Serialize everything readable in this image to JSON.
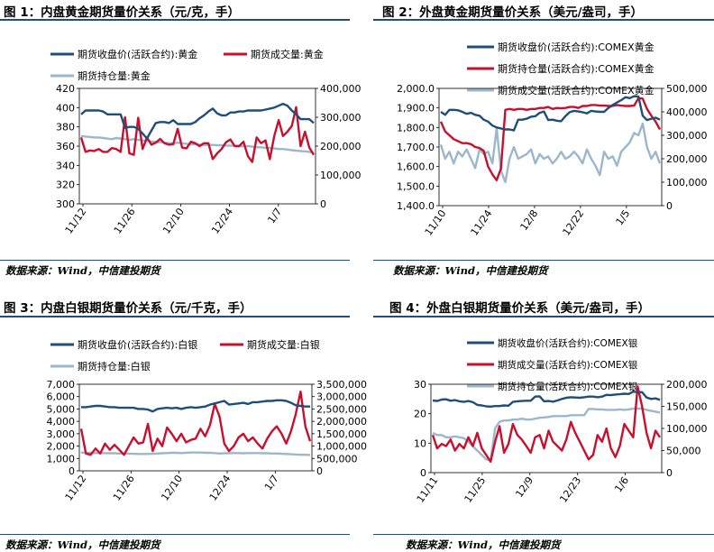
{
  "footer_source": "数据来源：Wind，中信建投期货",
  "chart_data": [
    {
      "type": "line",
      "title": "图 1：内盘黄金期货量价关系（元/克，手）",
      "x_ticks": [
        "11/12",
        "11/26",
        "12/10",
        "12/24",
        "1/7"
      ],
      "left_axis": {
        "ticks": [
          "300",
          "320",
          "340",
          "360",
          "380",
          "400",
          "420"
        ],
        "ylim": [
          300,
          420
        ]
      },
      "right_axis": {
        "ticks": [
          "0",
          "100,000",
          "200,000",
          "300,000",
          "400,000"
        ],
        "ylim": [
          0,
          400000
        ]
      },
      "series": [
        {
          "name": "期货收盘价(活跃合约):黄金",
          "axis": "left",
          "color": "#1f4e79",
          "values": [
            393,
            397,
            397,
            397,
            397,
            396,
            393,
            393,
            393,
            393,
            379,
            380,
            380,
            378,
            373,
            368,
            376,
            384,
            385,
            385,
            384,
            387,
            383,
            383,
            383,
            383,
            385,
            389,
            392,
            396,
            399,
            394,
            392,
            392,
            395,
            395,
            396,
            396,
            397,
            397,
            397,
            397,
            398,
            399,
            400,
            402,
            404,
            402,
            397,
            393,
            388,
            388,
            388,
            384
          ]
        },
        {
          "name": "期货成交量:黄金",
          "axis": "right",
          "color": "#c8102e",
          "values": [
            230000,
            180000,
            185000,
            183000,
            190000,
            180000,
            180000,
            193000,
            190000,
            180000,
            300000,
            175000,
            170000,
            298000,
            190000,
            230000,
            205000,
            212000,
            225000,
            210000,
            205000,
            207000,
            260000,
            195000,
            192000,
            215000,
            210000,
            200000,
            210000,
            210000,
            155000,
            175000,
            190000,
            213000,
            223000,
            200000,
            200000,
            215000,
            165000,
            145000,
            230000,
            210000,
            220000,
            155000,
            235000,
            290000,
            235000,
            250000,
            270000,
            335000,
            200000,
            250000,
            195000,
            170000
          ]
        },
        {
          "name": "期货持仓量:黄金",
          "axis": "right",
          "color": "#9bb7cc",
          "values": [
            235000,
            233000,
            232000,
            230000,
            230000,
            228000,
            226000,
            224000,
            228000,
            226000,
            224000,
            222000,
            224000,
            222000,
            220000,
            218000,
            216000,
            214000,
            214000,
            212000,
            210000,
            210000,
            212000,
            210000,
            208000,
            206000,
            206000,
            205000,
            204000,
            204000,
            204000,
            203000,
            203000,
            202000,
            202000,
            201000,
            200000,
            200000,
            200000,
            198000,
            196000,
            196000,
            194000,
            194000,
            192000,
            190000,
            190000,
            188000,
            186000,
            184000,
            183000,
            182000,
            180000,
            176000
          ]
        }
      ]
    },
    {
      "type": "line",
      "title": "图 2：外盘黄金期货量价关系（美元/盎司，手）",
      "x_ticks": [
        "11/10",
        "11/24",
        "12/8",
        "12/22",
        "1/5"
      ],
      "left_axis": {
        "ticks": [
          "1,400.0",
          "1,500.0",
          "1,600.0",
          "1,700.0",
          "1,800.0",
          "1,900.0",
          "2,000.0"
        ],
        "ylim": [
          1400,
          2000
        ]
      },
      "right_axis": {
        "ticks": [
          "0",
          "100,000",
          "200,000",
          "300,000",
          "400,000",
          "500,000"
        ],
        "ylim": [
          0,
          500000
        ]
      },
      "series": [
        {
          "name": "期货收盘价(活跃合约):COMEX黄金",
          "axis": "left",
          "color": "#1f4e79",
          "values": [
            1880,
            1865,
            1890,
            1890,
            1888,
            1880,
            1870,
            1875,
            1865,
            1860,
            1840,
            1830,
            1810,
            1800,
            1795,
            1790,
            1790,
            1785,
            1840,
            1840,
            1845,
            1855,
            1858,
            1875,
            1882,
            1838,
            1840,
            1835,
            1832,
            1858,
            1878,
            1885,
            1882,
            1878,
            1872,
            1885,
            1882,
            1880,
            1880,
            1900,
            1915,
            1928,
            1940,
            1955,
            1950,
            1960,
            1958,
            1860,
            1838,
            1845,
            1850,
            1840
          ]
        },
        {
          "name": "期货持仓量(活跃合约):COMEX黄金",
          "axis": "left",
          "color": "#c8102e",
          "values": [
            1830,
            1780,
            1760,
            1740,
            1730,
            1720,
            1720,
            1715,
            1700,
            1695,
            1680,
            1600,
            1560,
            1530,
            1590,
            1890,
            1895,
            1890,
            1895,
            1895,
            1890,
            1895,
            1895,
            1900,
            1900,
            1905,
            1895,
            1900,
            1898,
            1900,
            1905,
            1905,
            1900,
            1910,
            1910,
            1915,
            1915,
            1912,
            1912,
            1910,
            1910,
            1915,
            1912,
            1910,
            1910,
            1912,
            1950,
            1948,
            1895,
            1860,
            1830,
            1790
          ]
        },
        {
          "name": "期货成交量(活跃合约):COMEX黄金",
          "axis": "right",
          "color": "#9bb7cc",
          "values": [
            260000,
            200000,
            230000,
            180000,
            230000,
            210000,
            240000,
            200000,
            160000,
            240000,
            220000,
            230000,
            180000,
            330000,
            150000,
            100000,
            200000,
            250000,
            200000,
            210000,
            220000,
            240000,
            180000,
            220000,
            200000,
            210000,
            180000,
            200000,
            230000,
            200000,
            210000,
            230000,
            210000,
            180000,
            240000,
            200000,
            170000,
            130000,
            230000,
            200000,
            210000,
            170000,
            230000,
            250000,
            270000,
            310000,
            300000,
            350000,
            250000,
            200000,
            230000,
            180000
          ]
        }
      ]
    },
    {
      "type": "line",
      "title": "图 3：内盘白银期货量价关系（元/千克，手）",
      "x_ticks": [
        "11/12",
        "11/26",
        "12/10",
        "12/24",
        "1/7"
      ],
      "left_axis": {
        "ticks": [
          "0",
          "1,000",
          "2,000",
          "3,000",
          "4,000",
          "5,000",
          "6,000",
          "7,000"
        ],
        "ylim": [
          0,
          7000
        ]
      },
      "right_axis": {
        "ticks": [
          "0",
          "500,000",
          "1,000,000",
          "1,500,000",
          "2,000,000",
          "2,500,000",
          "3,000,000",
          "3,500,000"
        ],
        "ylim": [
          0,
          3500000
        ]
      },
      "series": [
        {
          "name": "期货收盘价(活跃合约):白银",
          "axis": "left",
          "color": "#1f4e79",
          "values": [
            5150,
            5150,
            5200,
            5250,
            5250,
            5200,
            5150,
            5150,
            5100,
            5100,
            5100,
            5100,
            5000,
            5000,
            4950,
            4800,
            5000,
            5050,
            5100,
            5050,
            5100,
            5000,
            5100,
            5150,
            5100,
            5150,
            5200,
            5350,
            5450,
            5550,
            5650,
            5350,
            5400,
            5450,
            5500,
            5400,
            5550,
            5550,
            5600,
            5650,
            5650,
            5700,
            5700,
            5650,
            5500,
            5300,
            5250,
            5200,
            5200
          ]
        },
        {
          "name": "期货成交量:白银",
          "axis": "right",
          "color": "#c8102e",
          "values": [
            1700000,
            700000,
            650000,
            900000,
            700000,
            1100000,
            850000,
            1050000,
            850000,
            650000,
            1000000,
            1350000,
            1100000,
            1150000,
            1900000,
            800000,
            1300000,
            1000000,
            1750000,
            1500000,
            1200000,
            1500000,
            1150000,
            1250000,
            1300000,
            1700000,
            1400000,
            1850000,
            2700000,
            2200000,
            1100000,
            800000,
            1000000,
            1350000,
            1500000,
            1200000,
            1350000,
            1100000,
            900000,
            1300000,
            1600000,
            1800000,
            1500000,
            1100000,
            1600000,
            2300000,
            3200000,
            1800000,
            1200000
          ]
        },
        {
          "name": "期货持仓量:白银",
          "axis": "right",
          "color": "#9bb7cc",
          "values": [
            740000,
            730000,
            730000,
            720000,
            720000,
            715000,
            710000,
            710000,
            700000,
            700000,
            695000,
            690000,
            680000,
            680000,
            680000,
            690000,
            700000,
            710000,
            720000,
            730000,
            730000,
            720000,
            730000,
            740000,
            740000,
            740000,
            730000,
            730000,
            720000,
            700000,
            710000,
            710000,
            720000,
            720000,
            710000,
            720000,
            720000,
            720000,
            710000,
            710000,
            700000,
            700000,
            690000,
            680000,
            670000,
            660000,
            650000,
            650000,
            640000
          ]
        }
      ]
    },
    {
      "type": "line",
      "title": "图 4：外盘白银期货量价关系（美元/盎司，手）",
      "x_ticks": [
        "11/11",
        "11/25",
        "12/9",
        "12/23",
        "1/6"
      ],
      "left_axis": {
        "ticks": [
          "0",
          "10",
          "20",
          "30"
        ],
        "ylim": [
          0,
          30
        ]
      },
      "right_axis": {
        "ticks": [
          "0",
          "50,000",
          "100,000",
          "150,000",
          "200,000"
        ],
        "ylim": [
          0,
          200000
        ]
      },
      "series": [
        {
          "name": "期货收盘价(活跃合约):COMEX银",
          "axis": "left",
          "color": "#1f4e79",
          "values": [
            24.5,
            24.3,
            24.8,
            24.9,
            24.4,
            24.6,
            24.2,
            24.0,
            24.3,
            23.9,
            23.0,
            22.8,
            22.5,
            22.4,
            22.6,
            22.6,
            22.8,
            22.7,
            24.0,
            24.2,
            24.3,
            24.4,
            24.4,
            25.8,
            25.9,
            24.2,
            24.3,
            24.1,
            24.5,
            25.0,
            25.4,
            25.6,
            25.5,
            25.4,
            25.6,
            25.8,
            25.8,
            25.6,
            25.8,
            26.4,
            26.3,
            26.5,
            26.6,
            26.8,
            26.7,
            27.5,
            27.3,
            27.3,
            25.5,
            25.0,
            25.2,
            24.7
          ]
        },
        {
          "name": "期货成交量(活跃合约):COMEX银",
          "axis": "right",
          "color": "#c8102e",
          "values": [
            85000,
            55000,
            65000,
            60000,
            75000,
            50000,
            65000,
            55000,
            80000,
            60000,
            90000,
            55000,
            40000,
            25000,
            70000,
            105000,
            45000,
            65000,
            110000,
            85000,
            75000,
            60000,
            45000,
            80000,
            85000,
            55000,
            95000,
            70000,
            60000,
            50000,
            75000,
            115000,
            90000,
            70000,
            50000,
            30000,
            40000,
            85000,
            70000,
            100000,
            55000,
            35000,
            60000,
            110000,
            95000,
            80000,
            195000,
            150000,
            90000,
            55000,
            95000,
            80000
          ]
        },
        {
          "name": "期货持仓量(活跃合约):COMEX银",
          "axis": "right",
          "color": "#9bb7cc",
          "values": [
            90000,
            85000,
            85000,
            80000,
            80000,
            82000,
            80000,
            78000,
            70000,
            60000,
            50000,
            40000,
            30000,
            28000,
            100000,
            115000,
            118000,
            118000,
            120000,
            120000,
            122000,
            120000,
            120000,
            122000,
            124000,
            125000,
            126000,
            128000,
            128000,
            128000,
            128000,
            130000,
            130000,
            130000,
            130000,
            144000,
            144000,
            143000,
            143000,
            142000,
            142000,
            142000,
            143000,
            142000,
            143000,
            145000,
            145000,
            145000,
            142000,
            140000,
            138000,
            136000
          ]
        }
      ]
    }
  ]
}
